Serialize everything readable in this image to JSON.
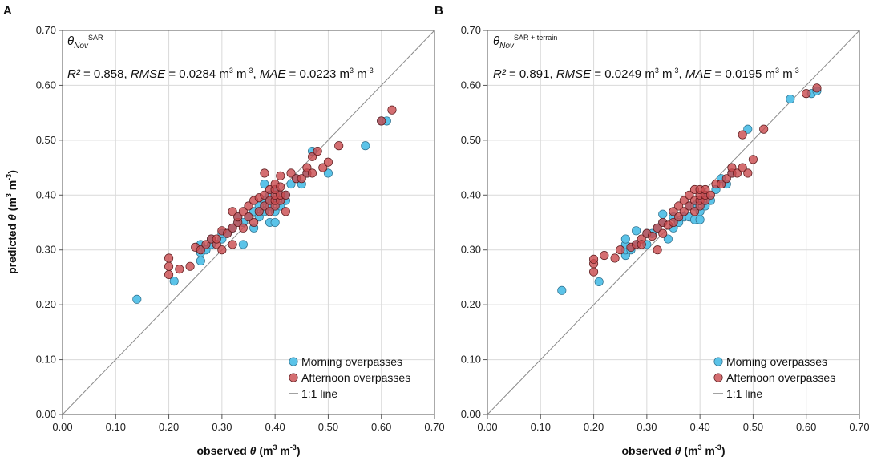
{
  "colors": {
    "morning": "#5bc3e8",
    "afternoon": "#c94a4e",
    "line": "#8a8a8a",
    "grid": "#d9d9d9"
  },
  "chart_data": [
    {
      "type": "scatter",
      "panel_label": "A",
      "model_symbol": "θ",
      "model_subscript": "Nov",
      "model_superscript": "SAR",
      "stats": {
        "r2_label": "R²",
        "r2_value": "= 0.858,",
        "rmse_label": "RMSE",
        "rmse_value": "= 0.0284",
        "mae_label": "MAE",
        "mae_value": "= 0.0223",
        "unit_base": "m",
        "unit_exp1": "3",
        "unit_mid": " m",
        "unit_exp2": "-3"
      },
      "xlabel": {
        "prefix": "observed ",
        "symbol": "θ",
        "unit_open": " (m",
        "unit_exp1": "3",
        "unit_mid": " m",
        "unit_exp2": "-3",
        "unit_close": ")"
      },
      "ylabel": {
        "prefix": "predicted ",
        "symbol": "θ",
        "unit_open": " (m",
        "unit_exp1": "3",
        "unit_mid": " m",
        "unit_exp2": "-3",
        "unit_close": ")"
      },
      "xlim": [
        0,
        0.7
      ],
      "ylim": [
        0,
        0.7
      ],
      "xticks": [
        "0.00",
        "0.10",
        "0.20",
        "0.30",
        "0.40",
        "0.50",
        "0.60",
        "0.70"
      ],
      "yticks": [
        "0.00",
        "0.10",
        "0.20",
        "0.30",
        "0.40",
        "0.50",
        "0.60",
        "0.70"
      ],
      "legend": [
        "Morning overpasses",
        "Afternoon overpasses",
        "1:1 line"
      ],
      "series": [
        {
          "name": "Morning overpasses",
          "points": [
            [
              0.14,
              0.21
            ],
            [
              0.21,
              0.243
            ],
            [
              0.26,
              0.28
            ],
            [
              0.26,
              0.295
            ],
            [
              0.26,
              0.31
            ],
            [
              0.27,
              0.3
            ],
            [
              0.28,
              0.31
            ],
            [
              0.28,
              0.32
            ],
            [
              0.3,
              0.32
            ],
            [
              0.3,
              0.33
            ],
            [
              0.31,
              0.33
            ],
            [
              0.32,
              0.34
            ],
            [
              0.33,
              0.35
            ],
            [
              0.33,
              0.36
            ],
            [
              0.34,
              0.31
            ],
            [
              0.34,
              0.35
            ],
            [
              0.35,
              0.36
            ],
            [
              0.36,
              0.34
            ],
            [
              0.36,
              0.37
            ],
            [
              0.37,
              0.36
            ],
            [
              0.37,
              0.38
            ],
            [
              0.38,
              0.37
            ],
            [
              0.38,
              0.39
            ],
            [
              0.38,
              0.42
            ],
            [
              0.39,
              0.35
            ],
            [
              0.39,
              0.38
            ],
            [
              0.39,
              0.4
            ],
            [
              0.4,
              0.35
            ],
            [
              0.4,
              0.37
            ],
            [
              0.4,
              0.39
            ],
            [
              0.4,
              0.41
            ],
            [
              0.41,
              0.38
            ],
            [
              0.41,
              0.4
            ],
            [
              0.42,
              0.39
            ],
            [
              0.42,
              0.4
            ],
            [
              0.43,
              0.42
            ],
            [
              0.44,
              0.43
            ],
            [
              0.45,
              0.42
            ],
            [
              0.46,
              0.44
            ],
            [
              0.47,
              0.48
            ],
            [
              0.5,
              0.44
            ],
            [
              0.57,
              0.49
            ],
            [
              0.6,
              0.535
            ],
            [
              0.61,
              0.535
            ]
          ]
        },
        {
          "name": "Afternoon overpasses",
          "points": [
            [
              0.2,
              0.255
            ],
            [
              0.2,
              0.27
            ],
            [
              0.2,
              0.285
            ],
            [
              0.22,
              0.265
            ],
            [
              0.24,
              0.27
            ],
            [
              0.25,
              0.305
            ],
            [
              0.26,
              0.3
            ],
            [
              0.27,
              0.31
            ],
            [
              0.28,
              0.32
            ],
            [
              0.29,
              0.31
            ],
            [
              0.29,
              0.32
            ],
            [
              0.3,
              0.3
            ],
            [
              0.3,
              0.335
            ],
            [
              0.31,
              0.33
            ],
            [
              0.32,
              0.31
            ],
            [
              0.32,
              0.34
            ],
            [
              0.32,
              0.37
            ],
            [
              0.33,
              0.35
            ],
            [
              0.33,
              0.36
            ],
            [
              0.34,
              0.34
            ],
            [
              0.34,
              0.37
            ],
            [
              0.35,
              0.36
            ],
            [
              0.35,
              0.38
            ],
            [
              0.36,
              0.35
            ],
            [
              0.36,
              0.39
            ],
            [
              0.37,
              0.37
            ],
            [
              0.37,
              0.395
            ],
            [
              0.38,
              0.38
            ],
            [
              0.38,
              0.4
            ],
            [
              0.38,
              0.44
            ],
            [
              0.39,
              0.37
            ],
            [
              0.39,
              0.39
            ],
            [
              0.39,
              0.41
            ],
            [
              0.4,
              0.38
            ],
            [
              0.4,
              0.39
            ],
            [
              0.4,
              0.4
            ],
            [
              0.4,
              0.41
            ],
            [
              0.4,
              0.42
            ],
            [
              0.41,
              0.39
            ],
            [
              0.41,
              0.4
            ],
            [
              0.41,
              0.415
            ],
            [
              0.41,
              0.435
            ],
            [
              0.42,
              0.37
            ],
            [
              0.42,
              0.4
            ],
            [
              0.43,
              0.44
            ],
            [
              0.44,
              0.43
            ],
            [
              0.45,
              0.43
            ],
            [
              0.46,
              0.44
            ],
            [
              0.46,
              0.45
            ],
            [
              0.47,
              0.44
            ],
            [
              0.47,
              0.47
            ],
            [
              0.48,
              0.48
            ],
            [
              0.49,
              0.45
            ],
            [
              0.5,
              0.46
            ],
            [
              0.52,
              0.49
            ],
            [
              0.6,
              0.535
            ],
            [
              0.62,
              0.555
            ]
          ]
        }
      ]
    },
    {
      "type": "scatter",
      "panel_label": "B",
      "model_symbol": "θ",
      "model_subscript": "Nov",
      "model_superscript": "SAR + terrain",
      "stats": {
        "r2_label": "R²",
        "r2_value": "= 0.891,",
        "rmse_label": "RMSE",
        "rmse_value": "= 0.0249",
        "mae_label": "MAE",
        "mae_value": "= 0.0195",
        "unit_base": "m",
        "unit_exp1": "3",
        "unit_mid": " m",
        "unit_exp2": "-3"
      },
      "xlabel": {
        "prefix": "observed ",
        "symbol": "θ",
        "unit_open": " (m",
        "unit_exp1": "3",
        "unit_mid": " m",
        "unit_exp2": "-3",
        "unit_close": ")"
      },
      "ylabel": {
        "prefix": "",
        "symbol": "",
        "unit_open": "",
        "unit_exp1": "",
        "unit_mid": "",
        "unit_exp2": "",
        "unit_close": ""
      },
      "xlim": [
        0,
        0.7
      ],
      "ylim": [
        0,
        0.7
      ],
      "xticks": [
        "0.00",
        "0.10",
        "0.20",
        "0.30",
        "0.40",
        "0.50",
        "0.60",
        "0.70"
      ],
      "yticks": [
        "0.00",
        "0.10",
        "0.20",
        "0.30",
        "0.40",
        "0.50",
        "0.60",
        "0.70"
      ],
      "legend": [
        "Morning overpasses",
        "Afternoon overpasses",
        "1:1 line"
      ],
      "series": [
        {
          "name": "Morning overpasses",
          "points": [
            [
              0.14,
              0.226
            ],
            [
              0.21,
              0.242
            ],
            [
              0.26,
              0.29
            ],
            [
              0.26,
              0.3
            ],
            [
              0.26,
              0.31
            ],
            [
              0.26,
              0.32
            ],
            [
              0.27,
              0.3
            ],
            [
              0.28,
              0.31
            ],
            [
              0.28,
              0.335
            ],
            [
              0.3,
              0.31
            ],
            [
              0.3,
              0.33
            ],
            [
              0.31,
              0.33
            ],
            [
              0.32,
              0.34
            ],
            [
              0.33,
              0.35
            ],
            [
              0.33,
              0.365
            ],
            [
              0.34,
              0.32
            ],
            [
              0.35,
              0.34
            ],
            [
              0.35,
              0.36
            ],
            [
              0.36,
              0.35
            ],
            [
              0.37,
              0.36
            ],
            [
              0.38,
              0.36
            ],
            [
              0.38,
              0.38
            ],
            [
              0.39,
              0.355
            ],
            [
              0.39,
              0.38
            ],
            [
              0.4,
              0.355
            ],
            [
              0.4,
              0.37
            ],
            [
              0.4,
              0.39
            ],
            [
              0.41,
              0.38
            ],
            [
              0.41,
              0.4
            ],
            [
              0.42,
              0.39
            ],
            [
              0.43,
              0.41
            ],
            [
              0.44,
              0.43
            ],
            [
              0.45,
              0.42
            ],
            [
              0.46,
              0.44
            ],
            [
              0.49,
              0.52
            ],
            [
              0.57,
              0.575
            ],
            [
              0.61,
              0.585
            ],
            [
              0.62,
              0.59
            ]
          ]
        },
        {
          "name": "Afternoon overpasses",
          "points": [
            [
              0.2,
              0.26
            ],
            [
              0.2,
              0.275
            ],
            [
              0.2,
              0.283
            ],
            [
              0.22,
              0.29
            ],
            [
              0.24,
              0.285
            ],
            [
              0.25,
              0.3
            ],
            [
              0.27,
              0.305
            ],
            [
              0.28,
              0.31
            ],
            [
              0.29,
              0.32
            ],
            [
              0.29,
              0.31
            ],
            [
              0.3,
              0.33
            ],
            [
              0.31,
              0.325
            ],
            [
              0.32,
              0.3
            ],
            [
              0.32,
              0.34
            ],
            [
              0.33,
              0.33
            ],
            [
              0.33,
              0.35
            ],
            [
              0.34,
              0.345
            ],
            [
              0.35,
              0.35
            ],
            [
              0.35,
              0.37
            ],
            [
              0.36,
              0.36
            ],
            [
              0.36,
              0.38
            ],
            [
              0.37,
              0.37
            ],
            [
              0.37,
              0.39
            ],
            [
              0.38,
              0.38
            ],
            [
              0.38,
              0.4
            ],
            [
              0.39,
              0.37
            ],
            [
              0.39,
              0.39
            ],
            [
              0.39,
              0.41
            ],
            [
              0.4,
              0.38
            ],
            [
              0.4,
              0.39
            ],
            [
              0.4,
              0.4
            ],
            [
              0.4,
              0.41
            ],
            [
              0.41,
              0.39
            ],
            [
              0.41,
              0.4
            ],
            [
              0.41,
              0.41
            ],
            [
              0.42,
              0.4
            ],
            [
              0.43,
              0.42
            ],
            [
              0.44,
              0.42
            ],
            [
              0.45,
              0.43
            ],
            [
              0.46,
              0.44
            ],
            [
              0.46,
              0.45
            ],
            [
              0.47,
              0.44
            ],
            [
              0.48,
              0.45
            ],
            [
              0.48,
              0.51
            ],
            [
              0.49,
              0.44
            ],
            [
              0.5,
              0.465
            ],
            [
              0.52,
              0.52
            ],
            [
              0.6,
              0.585
            ],
            [
              0.62,
              0.595
            ]
          ]
        }
      ]
    }
  ]
}
